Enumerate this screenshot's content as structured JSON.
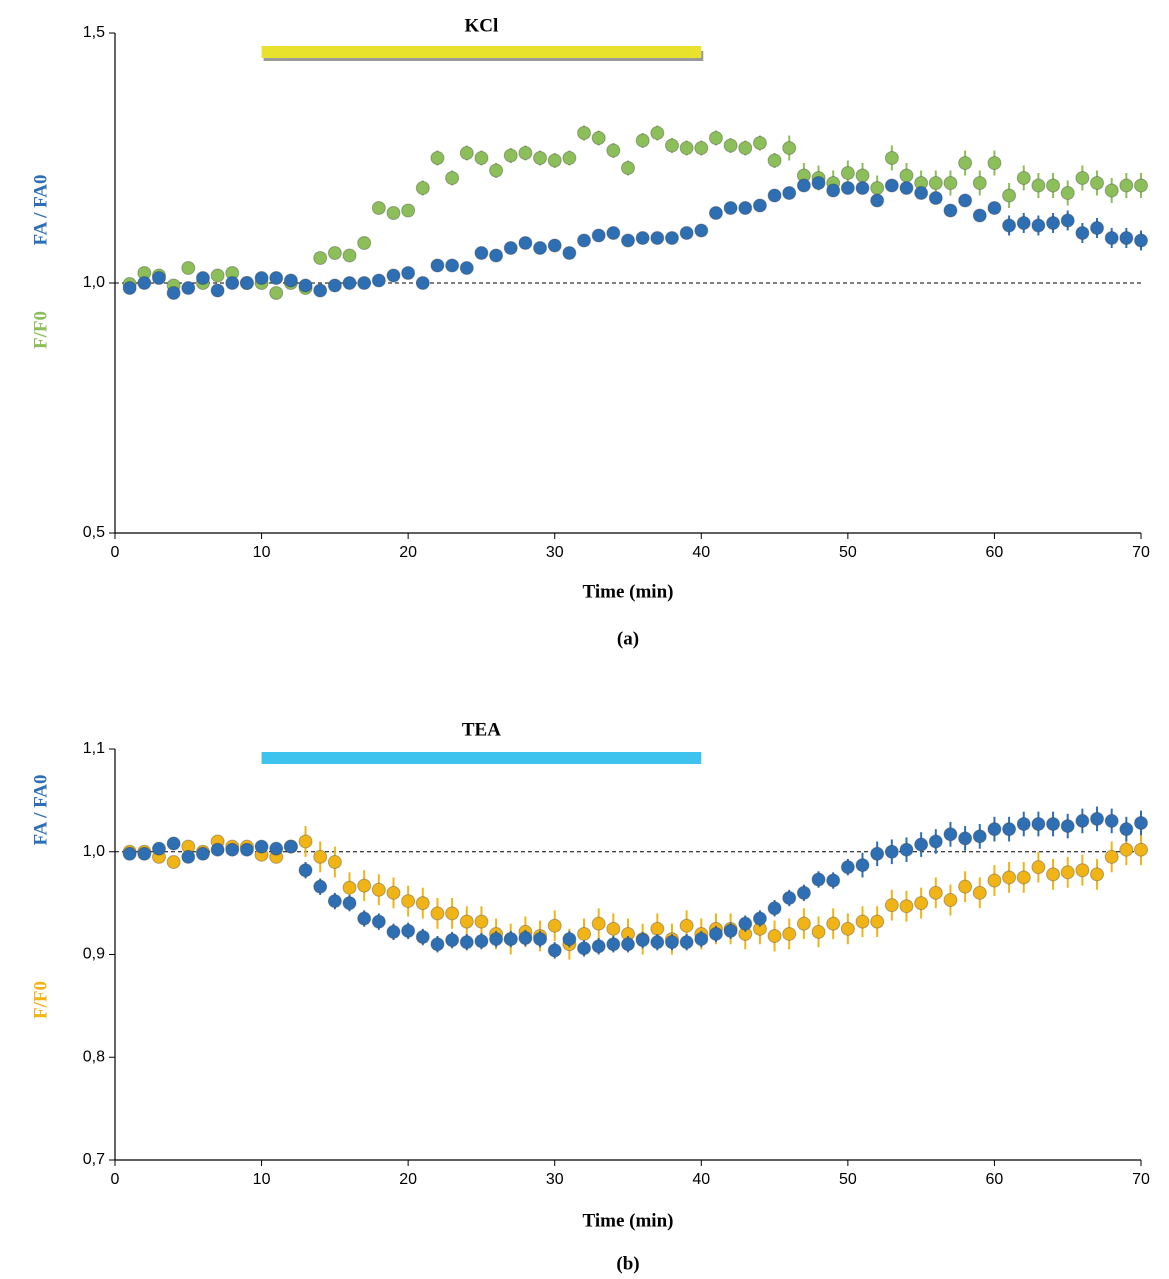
{
  "chart_data": [
    {
      "type": "scatter",
      "panel_label": "(a)",
      "xlabel": "Time (min)",
      "annotation": {
        "text": "KCl",
        "start": 10,
        "end": 40,
        "color": "#e8e22c"
      },
      "reference_line": 1,
      "xlim": [
        0,
        70
      ],
      "xticks": [
        0,
        10,
        20,
        30,
        40,
        50,
        60,
        70
      ],
      "ylim": [
        0.5,
        1.5
      ],
      "yticks": [
        {
          "value": 0.5,
          "label": "0,5"
        },
        {
          "value": 1,
          "label": "1,0"
        },
        {
          "value": 1.5,
          "label": "1,5"
        }
      ],
      "x": [
        1,
        2,
        3,
        4,
        5,
        6,
        7,
        8,
        9,
        10,
        11,
        12,
        13,
        14,
        15,
        16,
        17,
        18,
        19,
        20,
        21,
        22,
        23,
        24,
        25,
        26,
        27,
        28,
        29,
        30,
        31,
        32,
        33,
        34,
        35,
        36,
        37,
        38,
        39,
        40,
        41,
        42,
        43,
        44,
        45,
        46,
        47,
        48,
        49,
        50,
        51,
        52,
        53,
        54,
        55,
        56,
        57,
        58,
        59,
        60,
        61,
        62,
        63,
        64,
        65,
        66,
        67,
        68,
        69,
        70
      ],
      "series": [
        {
          "name": "F/F0",
          "color": "#8cbf5a",
          "values": [
            0.998,
            1.02,
            1.015,
            0.995,
            1.03,
            1.0,
            1.015,
            1.02,
            1.0,
            1.0,
            0.98,
            1.0,
            0.99,
            1.05,
            1.06,
            1.055,
            1.08,
            1.15,
            1.14,
            1.145,
            1.19,
            1.25,
            1.21,
            1.26,
            1.25,
            1.225,
            1.255,
            1.26,
            1.25,
            1.245,
            1.25,
            1.3,
            1.29,
            1.265,
            1.23,
            1.285,
            1.3,
            1.275,
            1.27,
            1.27,
            1.29,
            1.275,
            1.27,
            1.28,
            1.245,
            1.27,
            1.215,
            1.21,
            1.2,
            1.22,
            1.215,
            1.19,
            1.25,
            1.215,
            1.2,
            1.2,
            1.2,
            1.24,
            1.2,
            1.24,
            1.175,
            1.21,
            1.195,
            1.195,
            1.18,
            1.21,
            1.2,
            1.185,
            1.195,
            1.195
          ],
          "errors": [
            0.005,
            0.005,
            0.005,
            0.005,
            0.005,
            0.005,
            0.005,
            0.005,
            0.005,
            0.005,
            0.005,
            0.005,
            0.005,
            0.005,
            0.005,
            0.005,
            0.005,
            0.005,
            0.005,
            0.005,
            0.015,
            0.015,
            0.015,
            0.015,
            0.015,
            0.015,
            0.015,
            0.015,
            0.015,
            0.015,
            0.015,
            0.015,
            0.015,
            0.015,
            0.015,
            0.015,
            0.015,
            0.015,
            0.015,
            0.015,
            0.015,
            0.015,
            0.015,
            0.015,
            0.015,
            0.025,
            0.025,
            0.025,
            0.025,
            0.025,
            0.025,
            0.025,
            0.025,
            0.025,
            0.025,
            0.025,
            0.025,
            0.025,
            0.025,
            0.025,
            0.025,
            0.025,
            0.025,
            0.025,
            0.025,
            0.025,
            0.025,
            0.025,
            0.025,
            0.025
          ]
        },
        {
          "name": "FA / FA0",
          "color": "#2e6fb3",
          "values": [
            0.99,
            1.0,
            1.01,
            0.98,
            0.99,
            1.01,
            0.985,
            1.0,
            1.0,
            1.01,
            1.01,
            1.005,
            0.995,
            0.985,
            0.995,
            1.0,
            1.0,
            1.005,
            1.015,
            1.02,
            1.0,
            1.035,
            1.035,
            1.03,
            1.06,
            1.055,
            1.07,
            1.08,
            1.07,
            1.075,
            1.06,
            1.085,
            1.095,
            1.1,
            1.085,
            1.09,
            1.09,
            1.09,
            1.1,
            1.105,
            1.14,
            1.15,
            1.15,
            1.155,
            1.175,
            1.18,
            1.195,
            1.2,
            1.185,
            1.19,
            1.19,
            1.165,
            1.195,
            1.19,
            1.18,
            1.17,
            1.145,
            1.165,
            1.135,
            1.15,
            1.115,
            1.12,
            1.115,
            1.12,
            1.125,
            1.1,
            1.11,
            1.09,
            1.09,
            1.085
          ],
          "errors": [
            0.006,
            0.006,
            0.006,
            0.006,
            0.006,
            0.006,
            0.006,
            0.006,
            0.006,
            0.006,
            0.006,
            0.006,
            0.006,
            0.006,
            0.006,
            0.006,
            0.006,
            0.006,
            0.006,
            0.006,
            0.006,
            0.006,
            0.006,
            0.006,
            0.006,
            0.006,
            0.006,
            0.006,
            0.006,
            0.006,
            0.006,
            0.006,
            0.006,
            0.006,
            0.006,
            0.006,
            0.006,
            0.006,
            0.006,
            0.006,
            0.01,
            0.01,
            0.01,
            0.01,
            0.01,
            0.01,
            0.01,
            0.01,
            0.01,
            0.01,
            0.01,
            0.01,
            0.01,
            0.01,
            0.01,
            0.01,
            0.01,
            0.01,
            0.01,
            0.01,
            0.02,
            0.02,
            0.02,
            0.02,
            0.02,
            0.02,
            0.02,
            0.02,
            0.02,
            0.02
          ]
        }
      ]
    },
    {
      "type": "scatter",
      "panel_label": "(b)",
      "xlabel": "Time (min)",
      "annotation": {
        "text": "TEA",
        "start": 10,
        "end": 40,
        "color": "#3ec3ee"
      },
      "reference_line": 1,
      "xlim": [
        0,
        70
      ],
      "xticks": [
        0,
        10,
        20,
        30,
        40,
        50,
        60,
        70
      ],
      "ylim": [
        0.7,
        1.1
      ],
      "yticks": [
        {
          "value": 0.7,
          "label": "0,7"
        },
        {
          "value": 0.8,
          "label": "0,8"
        },
        {
          "value": 0.9,
          "label": "0,9"
        },
        {
          "value": 1,
          "label": "1,0"
        },
        {
          "value": 1.1,
          "label": "1,1"
        }
      ],
      "x": [
        1,
        2,
        3,
        4,
        5,
        6,
        7,
        8,
        9,
        10,
        11,
        12,
        13,
        14,
        15,
        16,
        17,
        18,
        19,
        20,
        21,
        22,
        23,
        24,
        25,
        26,
        27,
        28,
        29,
        30,
        31,
        32,
        33,
        34,
        35,
        36,
        37,
        38,
        39,
        40,
        41,
        42,
        43,
        44,
        45,
        46,
        47,
        48,
        49,
        50,
        51,
        52,
        53,
        54,
        55,
        56,
        57,
        58,
        59,
        60,
        61,
        62,
        63,
        64,
        65,
        66,
        67,
        68,
        69,
        70
      ],
      "series": [
        {
          "name": "F/F0",
          "color": "#f0b417",
          "values": [
            1.0,
            1.0,
            0.995,
            0.99,
            1.005,
            1.0,
            1.01,
            1.005,
            1.005,
            0.997,
            0.995,
            1.005,
            1.01,
            0.995,
            0.99,
            0.965,
            0.967,
            0.963,
            0.96,
            0.952,
            0.95,
            0.94,
            0.94,
            0.932,
            0.932,
            0.92,
            0.915,
            0.922,
            0.918,
            0.928,
            0.91,
            0.92,
            0.93,
            0.925,
            0.92,
            0.915,
            0.925,
            0.915,
            0.928,
            0.92,
            0.925,
            0.925,
            0.92,
            0.925,
            0.918,
            0.92,
            0.93,
            0.922,
            0.93,
            0.925,
            0.932,
            0.932,
            0.948,
            0.947,
            0.95,
            0.96,
            0.953,
            0.966,
            0.96,
            0.972,
            0.975,
            0.975,
            0.985,
            0.978,
            0.98,
            0.982,
            0.978,
            0.995,
            1.002,
            1.002
          ],
          "errors": [
            0.005,
            0.005,
            0.005,
            0.005,
            0.005,
            0.005,
            0.005,
            0.005,
            0.005,
            0.005,
            0.005,
            0.005,
            0.015,
            0.015,
            0.015,
            0.015,
            0.015,
            0.015,
            0.015,
            0.015,
            0.015,
            0.015,
            0.015,
            0.015,
            0.015,
            0.015,
            0.015,
            0.015,
            0.015,
            0.015,
            0.015,
            0.015,
            0.015,
            0.015,
            0.015,
            0.015,
            0.015,
            0.015,
            0.015,
            0.015,
            0.015,
            0.015,
            0.015,
            0.015,
            0.015,
            0.015,
            0.015,
            0.015,
            0.015,
            0.015,
            0.015,
            0.015,
            0.015,
            0.015,
            0.015,
            0.015,
            0.015,
            0.015,
            0.015,
            0.015,
            0.015,
            0.015,
            0.015,
            0.015,
            0.015,
            0.015,
            0.015,
            0.015,
            0.015,
            0.015
          ]
        },
        {
          "name": "FA / FA0",
          "color": "#2e6fb3",
          "values": [
            0.998,
            0.998,
            1.003,
            1.008,
            0.995,
            0.998,
            1.002,
            1.002,
            1.002,
            1.005,
            1.003,
            1.005,
            0.982,
            0.966,
            0.952,
            0.95,
            0.935,
            0.932,
            0.922,
            0.923,
            0.917,
            0.91,
            0.914,
            0.912,
            0.913,
            0.915,
            0.915,
            0.916,
            0.915,
            0.904,
            0.915,
            0.906,
            0.908,
            0.91,
            0.91,
            0.914,
            0.912,
            0.912,
            0.912,
            0.915,
            0.92,
            0.923,
            0.93,
            0.935,
            0.945,
            0.955,
            0.96,
            0.973,
            0.972,
            0.985,
            0.987,
            0.998,
            1.0,
            1.002,
            1.007,
            1.01,
            1.017,
            1.013,
            1.015,
            1.022,
            1.022,
            1.027,
            1.027,
            1.027,
            1.025,
            1.03,
            1.032,
            1.03,
            1.022,
            1.028
          ],
          "errors": [
            0.004,
            0.004,
            0.004,
            0.004,
            0.004,
            0.004,
            0.004,
            0.004,
            0.004,
            0.004,
            0.004,
            0.004,
            0.008,
            0.008,
            0.008,
            0.008,
            0.008,
            0.008,
            0.008,
            0.008,
            0.008,
            0.008,
            0.008,
            0.008,
            0.008,
            0.008,
            0.008,
            0.008,
            0.008,
            0.008,
            0.008,
            0.008,
            0.008,
            0.008,
            0.008,
            0.008,
            0.008,
            0.008,
            0.008,
            0.008,
            0.008,
            0.008,
            0.008,
            0.008,
            0.008,
            0.008,
            0.008,
            0.008,
            0.008,
            0.008,
            0.012,
            0.012,
            0.012,
            0.012,
            0.012,
            0.012,
            0.012,
            0.012,
            0.012,
            0.012,
            0.012,
            0.012,
            0.012,
            0.012,
            0.012,
            0.012,
            0.012,
            0.012,
            0.012,
            0.012
          ]
        }
      ]
    }
  ]
}
